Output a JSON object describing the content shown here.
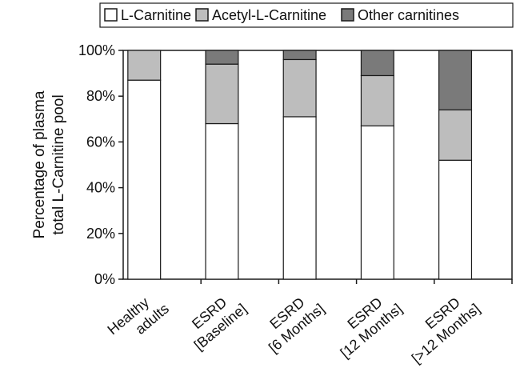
{
  "chart_data": {
    "type": "bar",
    "stacked": true,
    "percent_stacked": true,
    "categories": [
      [
        "Healthy",
        "adults"
      ],
      [
        "ESRD",
        "[Baseline]"
      ],
      [
        "ESRD",
        "[6 Months]"
      ],
      [
        "ESRD",
        "[12 Months]"
      ],
      [
        "ESRD",
        "[>12 Months]"
      ]
    ],
    "series": [
      {
        "name": "L-Carnitine",
        "color": "#ffffff",
        "values": [
          87,
          68,
          71,
          67,
          52
        ]
      },
      {
        "name": "Acetyl-L-Carnitine",
        "color": "#bdbdbd",
        "values": [
          13,
          26,
          25,
          22,
          22
        ]
      },
      {
        "name": "Other carnitines",
        "color": "#7a7a7a",
        "values": [
          0,
          6,
          4,
          11,
          26
        ]
      }
    ],
    "ylabel": [
      "Percentage of plasma",
      "total L-Carnitine pool"
    ],
    "xlabel": "",
    "ylim": [
      0,
      100
    ],
    "y_ticks": [
      "0%",
      "20%",
      "40%",
      "60%",
      "80%",
      "100%"
    ],
    "legend_position": "top",
    "grid": false
  }
}
